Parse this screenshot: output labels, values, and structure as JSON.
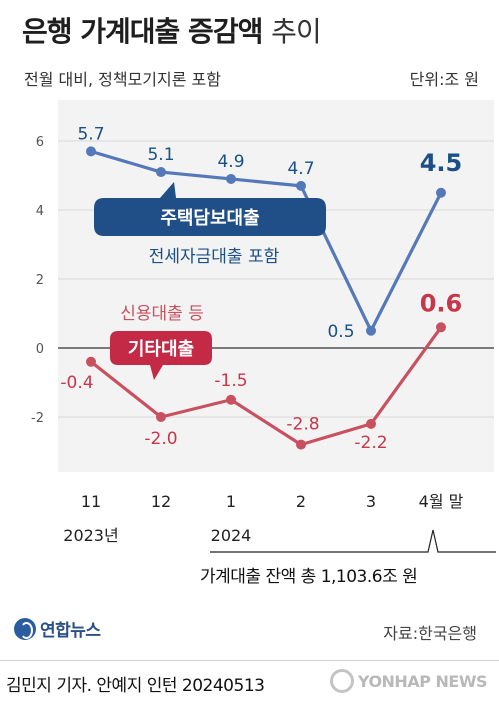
{
  "header": {
    "title_bold": "은행 가계대출 증감액",
    "title_light": "추이",
    "subtitle": "전월 대비, 정책모기지론 포함",
    "unit": "단위:조 원"
  },
  "chart_data": {
    "type": "line",
    "x": [
      "11",
      "12",
      "1",
      "2",
      "3",
      "4월 말"
    ],
    "year_labels": [
      "2023년",
      "2024"
    ],
    "ylim": [
      -3.5,
      6.5
    ],
    "yticks": [
      6,
      4,
      2,
      0,
      -2
    ],
    "series": [
      {
        "name": "주택담보대출",
        "sub_label": "전세자금대출 포함",
        "values": [
          5.7,
          5.1,
          4.9,
          4.7,
          0.5,
          4.5
        ],
        "value_labels": [
          "5.7",
          "5.1",
          "4.9",
          "4.7",
          "0.5",
          "4.5"
        ],
        "color": "#5578b8",
        "label_color": "#1a4f87"
      },
      {
        "name": "기타대출",
        "sub_label": "신용대출 등",
        "values": [
          -0.4,
          -2.0,
          -1.5,
          -2.8,
          -2.2,
          0.6
        ],
        "value_labels": [
          "-0.4",
          "-2.0",
          "-1.5",
          "-2.8",
          "-2.2",
          "0.6"
        ],
        "color": "#c9505f",
        "label_color": "#c8364a"
      }
    ],
    "annotation": "가계대출 잔액 총 1,103.6조 원"
  },
  "footer": {
    "logo": "연합뉴스",
    "source": "자료:한국은행",
    "credit": "김민지 기자. 안예지 인턴 20240513",
    "watermark": "YONHAP NEWS"
  },
  "colors": {
    "mortgage": "#5578b8",
    "other": "#c9505f",
    "mortgage_box": "#1f4f86",
    "other_box": "#c42a46"
  }
}
